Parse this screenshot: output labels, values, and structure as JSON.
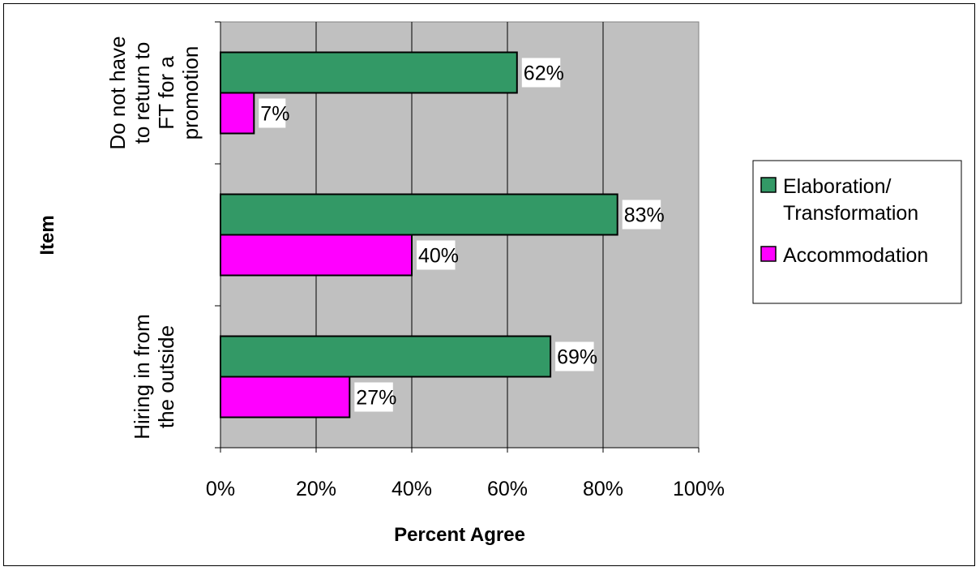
{
  "chart_data": {
    "type": "bar",
    "orientation": "horizontal",
    "categories": [
      [
        "Do not have",
        "to return to",
        "FT for a",
        "promotion"
      ],
      [],
      [
        "Hiring in from",
        "the outside"
      ]
    ],
    "series": [
      {
        "name": "Elaboration/\nTransformation",
        "legend_lines": [
          "Elaboration/",
          "Transformation"
        ],
        "values": [
          62,
          83,
          69
        ],
        "labels": [
          "62%",
          "83%",
          "69%"
        ],
        "color": "#339966"
      },
      {
        "name": "Accommodation",
        "legend_lines": [
          "Accommodation"
        ],
        "values": [
          7,
          40,
          27
        ],
        "labels": [
          "7%",
          "40%",
          "27%"
        ],
        "color": "#ff00ff"
      }
    ],
    "xlabel": "Percent Agree",
    "ylabel": "Item",
    "xlim": [
      0,
      100
    ],
    "xticks": [
      "0%",
      "20%",
      "40%",
      "60%",
      "80%",
      "100%"
    ],
    "grid": true,
    "plot_background": "#c0c0c0",
    "legend": "right"
  }
}
